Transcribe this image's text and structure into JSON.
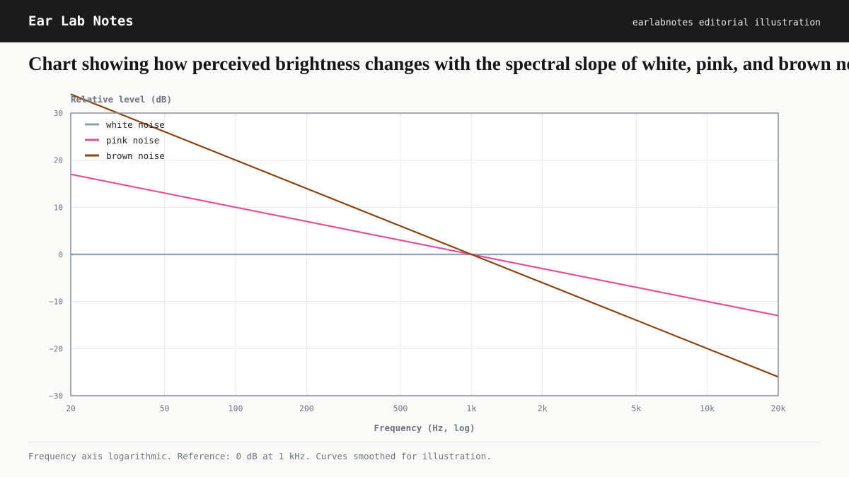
{
  "header": {
    "brand": "Ear Lab Notes",
    "credit": "earlabnotes editorial illustration"
  },
  "page": {
    "title": "Chart showing how perceived brightness changes with the spectral slope of white, pink, and brown noise.",
    "footnote": "Frequency axis logarithmic. Reference: 0 dB at 1 kHz. Curves smoothed for illustration."
  },
  "chart_data": {
    "type": "line",
    "title": "",
    "xlabel": "Frequency (Hz, log)",
    "ylabel": "Relative level (dB)",
    "x_scale": "log",
    "xlim": [
      20,
      20000
    ],
    "ylim": [
      -30,
      30
    ],
    "x_ticks": [
      {
        "value": 20,
        "label": "20"
      },
      {
        "value": 50,
        "label": "50"
      },
      {
        "value": 100,
        "label": "100"
      },
      {
        "value": 200,
        "label": "200"
      },
      {
        "value": 500,
        "label": "500"
      },
      {
        "value": 1000,
        "label": "1k"
      },
      {
        "value": 2000,
        "label": "2k"
      },
      {
        "value": 5000,
        "label": "5k"
      },
      {
        "value": 10000,
        "label": "10k"
      },
      {
        "value": 20000,
        "label": "20k"
      }
    ],
    "y_ticks": [
      {
        "value": 30,
        "label": "30"
      },
      {
        "value": 20,
        "label": "20"
      },
      {
        "value": 10,
        "label": "10"
      },
      {
        "value": 0,
        "label": "0"
      },
      {
        "value": -10,
        "label": "−10"
      },
      {
        "value": -20,
        "label": "−20"
      },
      {
        "value": -30,
        "label": "−30"
      }
    ],
    "grid": true,
    "legend_position": "top-left",
    "series": [
      {
        "name": "white noise",
        "color": "#8c9fb3",
        "points": [
          [
            20,
            0
          ],
          [
            1000,
            0
          ],
          [
            20000,
            0
          ]
        ]
      },
      {
        "name": "pink noise",
        "color": "#e0529c",
        "points": [
          [
            20,
            17
          ],
          [
            1000,
            0
          ],
          [
            20000,
            -13
          ]
        ]
      },
      {
        "name": "brown noise",
        "color": "#8b4513",
        "points": [
          [
            20,
            34
          ],
          [
            1000,
            0
          ],
          [
            20000,
            -26
          ]
        ]
      }
    ]
  }
}
